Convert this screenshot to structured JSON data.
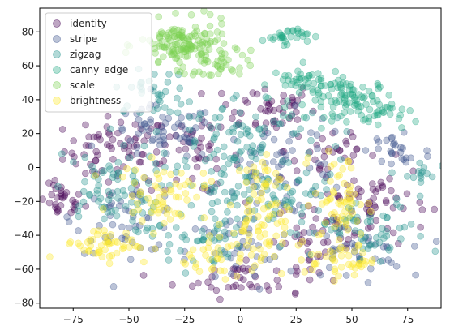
{
  "chart_data": {
    "type": "scatter",
    "title": "",
    "xlabel": "",
    "ylabel": "",
    "xlim": [
      -90,
      90
    ],
    "ylim": [
      -83,
      94
    ],
    "xticks": [
      -75,
      -50,
      -25,
      0,
      25,
      50,
      75
    ],
    "yticks": [
      -80,
      -60,
      -40,
      -20,
      0,
      20,
      40,
      60,
      80
    ],
    "grid": false,
    "legend_position": "top-left",
    "marker_alpha": 0.35,
    "series": [
      {
        "name": "identity",
        "color": "#440154",
        "clusters": [
          {
            "cx": -55,
            "cy": 10,
            "sx": 12,
            "sy": 10,
            "n": 70
          },
          {
            "cx": -80,
            "cy": -20,
            "sx": 5,
            "sy": 5,
            "n": 30
          },
          {
            "cx": 10,
            "cy": 35,
            "sx": 12,
            "sy": 8,
            "n": 50
          },
          {
            "cx": 60,
            "cy": -20,
            "sx": 12,
            "sy": 12,
            "n": 60
          },
          {
            "cx": 0,
            "cy": -65,
            "sx": 15,
            "sy": 6,
            "n": 40
          },
          {
            "cx": 35,
            "cy": -40,
            "sx": 10,
            "sy": 10,
            "n": 40
          },
          {
            "cx": -20,
            "cy": 5,
            "sx": 10,
            "sy": 10,
            "n": 40
          },
          {
            "cx": 40,
            "cy": 10,
            "sx": 10,
            "sy": 10,
            "n": 30
          }
        ]
      },
      {
        "name": "stripe",
        "color": "#3b528b",
        "clusters": [
          {
            "cx": -35,
            "cy": 20,
            "sx": 12,
            "sy": 8,
            "n": 60
          },
          {
            "cx": 20,
            "cy": 0,
            "sx": 15,
            "sy": 15,
            "n": 60
          },
          {
            "cx": -50,
            "cy": -30,
            "sx": 12,
            "sy": 10,
            "n": 50
          },
          {
            "cx": 50,
            "cy": -50,
            "sx": 12,
            "sy": 8,
            "n": 40
          },
          {
            "cx": 0,
            "cy": -50,
            "sx": 12,
            "sy": 12,
            "n": 40
          },
          {
            "cx": 70,
            "cy": 10,
            "sx": 8,
            "sy": 8,
            "n": 25
          }
        ]
      },
      {
        "name": "zigzag",
        "color": "#21918c",
        "clusters": [
          {
            "cx": 0,
            "cy": 20,
            "sx": 20,
            "sy": 12,
            "n": 90
          },
          {
            "cx": -60,
            "cy": -15,
            "sx": 12,
            "sy": 12,
            "n": 70
          },
          {
            "cx": -20,
            "cy": -40,
            "sx": 10,
            "sy": 10,
            "n": 50
          },
          {
            "cx": 60,
            "cy": -40,
            "sx": 12,
            "sy": 10,
            "n": 50
          },
          {
            "cx": 25,
            "cy": -20,
            "sx": 12,
            "sy": 12,
            "n": 50
          },
          {
            "cx": -40,
            "cy": 45,
            "sx": 8,
            "sy": 6,
            "n": 30
          },
          {
            "cx": 80,
            "cy": -5,
            "sx": 4,
            "sy": 5,
            "n": 15
          },
          {
            "cx": -5,
            "cy": -10,
            "sx": 10,
            "sy": 10,
            "n": 40
          }
        ]
      },
      {
        "name": "canny_edge",
        "color": "#22a884",
        "clusters": [
          {
            "cx": 50,
            "cy": 40,
            "sx": 10,
            "sy": 6,
            "n": 90
          },
          {
            "cx": 30,
            "cy": 50,
            "sx": 8,
            "sy": 5,
            "n": 40
          },
          {
            "cx": 20,
            "cy": 78,
            "sx": 5,
            "sy": 2.5,
            "n": 30
          },
          {
            "cx": 65,
            "cy": 30,
            "sx": 5,
            "sy": 4,
            "n": 20
          }
        ]
      },
      {
        "name": "scale",
        "color": "#7ad151",
        "clusters": [
          {
            "cx": -25,
            "cy": 72,
            "sx": 10,
            "sy": 7,
            "n": 140
          },
          {
            "cx": -10,
            "cy": 60,
            "sx": 7,
            "sy": 4,
            "n": 30
          }
        ]
      },
      {
        "name": "brightness",
        "color": "#fde725",
        "clusters": [
          {
            "cx": -35,
            "cy": -15,
            "sx": 10,
            "sy": 8,
            "n": 60
          },
          {
            "cx": -60,
            "cy": -45,
            "sx": 10,
            "sy": 5,
            "n": 50
          },
          {
            "cx": 5,
            "cy": -40,
            "sx": 8,
            "sy": 14,
            "n": 80
          },
          {
            "cx": 45,
            "cy": -20,
            "sx": 6,
            "sy": 14,
            "n": 60
          },
          {
            "cx": 45,
            "cy": -55,
            "sx": 8,
            "sy": 5,
            "n": 40
          },
          {
            "cx": 10,
            "cy": -5,
            "sx": 4,
            "sy": 6,
            "n": 20
          },
          {
            "cx": -15,
            "cy": -55,
            "sx": 6,
            "sy": 6,
            "n": 20
          }
        ]
      }
    ]
  }
}
